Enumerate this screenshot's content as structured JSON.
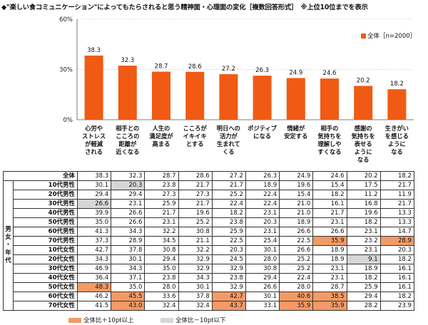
{
  "title": "◆\"楽しい食コミュニケーション\"によってもたらされると思う精神面・心理面の変化［複数回答形式］　※上位10位までを表示",
  "colors": {
    "bar": "#f05a14",
    "high": "#f39a66",
    "low": "#d6d6d6"
  },
  "chart_data": {
    "type": "bar",
    "series": [
      {
        "name": "全体［n=2000］",
        "values": [
          38.3,
          32.3,
          28.7,
          28.6,
          27.2,
          26.3,
          24.9,
          24.6,
          20.2,
          18.2
        ]
      }
    ],
    "categories": [
      "心労や\nストレス\nが軽減\nされる",
      "相手との\nこころの\n距離が\n近くなる",
      "人生の\n満足度が\n高まる",
      "こころが\nイキイキ\nとする",
      "明日への\n活力が\n生まれて\nくる",
      "ポジティブ\nになる",
      "情緒が\n安定する",
      "相手の\n気持ちを\n理解しや\nすくなる",
      "感謝の\n気持ちを\n表せる\nように\nなる",
      "生きがい\nを感じる\nように\nなる"
    ],
    "yticks": [
      "0%",
      "30%",
      "60%"
    ],
    "ylim": [
      0,
      60
    ],
    "legend": "全体［n=2000］",
    "table": {
      "total_label": "全体",
      "group_label": "男女・年代",
      "rows": [
        {
          "label": "10代男性",
          "values": [
            "30.1",
            "20.3",
            "23.8",
            "21.7",
            "21.7",
            "18.9",
            "19.6",
            "15.4",
            "17.5",
            "21.7"
          ],
          "hl": [
            0,
            2,
            0,
            0,
            0,
            0,
            0,
            0,
            0,
            0
          ]
        },
        {
          "label": "20代男性",
          "values": [
            "29.4",
            "29.4",
            "27.3",
            "27.3",
            "25.2",
            "22.4",
            "15.4",
            "18.2",
            "11.2",
            "11.9"
          ],
          "hl": [
            0,
            0,
            0,
            0,
            0,
            0,
            0,
            0,
            0,
            0
          ]
        },
        {
          "label": "30代男性",
          "values": [
            "26.6",
            "23.1",
            "25.9",
            "21.7",
            "22.4",
            "22.4",
            "21.0",
            "16.1",
            "16.8",
            "21.7"
          ],
          "hl": [
            2,
            0,
            0,
            0,
            0,
            0,
            0,
            0,
            0,
            0
          ]
        },
        {
          "label": "40代男性",
          "values": [
            "39.9",
            "26.6",
            "21.7",
            "19.6",
            "18.2",
            "23.1",
            "21.0",
            "21.7",
            "19.6",
            "13.3"
          ],
          "hl": [
            0,
            0,
            0,
            0,
            0,
            0,
            0,
            0,
            0,
            0
          ]
        },
        {
          "label": "50代男性",
          "values": [
            "35.0",
            "26.6",
            "23.1",
            "25.2",
            "23.8",
            "20.3",
            "18.9",
            "23.1",
            "18.2",
            "13.3"
          ],
          "hl": [
            0,
            0,
            0,
            0,
            0,
            0,
            0,
            0,
            0,
            0
          ]
        },
        {
          "label": "60代男性",
          "values": [
            "41.3",
            "34.3",
            "32.2",
            "30.8",
            "25.9",
            "23.1",
            "26.6",
            "26.6",
            "23.1",
            "14.7"
          ],
          "hl": [
            0,
            0,
            0,
            0,
            0,
            0,
            0,
            0,
            0,
            0
          ]
        },
        {
          "label": "70代男性",
          "values": [
            "37.3",
            "28.9",
            "34.5",
            "21.1",
            "22.5",
            "25.4",
            "22.5",
            "35.9",
            "23.2",
            "28.9"
          ],
          "hl": [
            0,
            0,
            0,
            0,
            0,
            0,
            0,
            1,
            0,
            1
          ]
        },
        {
          "label": "10代女性",
          "values": [
            "42.7",
            "37.8",
            "30.8",
            "32.2",
            "20.3",
            "30.1",
            "26.6",
            "18.9",
            "23.1",
            "20.3"
          ],
          "hl": [
            0,
            0,
            0,
            0,
            0,
            0,
            0,
            0,
            0,
            0
          ]
        },
        {
          "label": "20代女性",
          "values": [
            "34.3",
            "30.1",
            "29.4",
            "32.9",
            "24.5",
            "28.0",
            "25.2",
            "18.9",
            "9.1",
            "18.2"
          ],
          "hl": [
            0,
            0,
            0,
            0,
            0,
            0,
            0,
            0,
            2,
            0
          ]
        },
        {
          "label": "30代女性",
          "values": [
            "46.9",
            "34.3",
            "35.0",
            "32.9",
            "32.9",
            "30.8",
            "25.2",
            "23.1",
            "18.9",
            "16.1"
          ],
          "hl": [
            0,
            0,
            0,
            0,
            0,
            0,
            0,
            0,
            0,
            0
          ]
        },
        {
          "label": "40代女性",
          "values": [
            "36.4",
            "37.1",
            "23.8",
            "34.3",
            "23.8",
            "29.4",
            "22.4",
            "23.1",
            "18.2",
            "16.1"
          ],
          "hl": [
            0,
            0,
            0,
            0,
            0,
            0,
            0,
            0,
            0,
            0
          ]
        },
        {
          "label": "50代女性",
          "values": [
            "48.3",
            "35.0",
            "28.0",
            "30.1",
            "32.9",
            "26.6",
            "28.0",
            "28.7",
            "25.9",
            "16.1"
          ],
          "hl": [
            1,
            0,
            0,
            0,
            0,
            0,
            0,
            0,
            0,
            0
          ]
        },
        {
          "label": "60代女性",
          "values": [
            "46.2",
            "45.5",
            "33.6",
            "37.8",
            "42.7",
            "30.1",
            "40.6",
            "38.5",
            "29.4",
            "18.2"
          ],
          "hl": [
            0,
            1,
            0,
            0,
            1,
            0,
            1,
            1,
            0,
            0
          ]
        },
        {
          "label": "70代女性",
          "values": [
            "41.5",
            "43.0",
            "32.4",
            "32.4",
            "43.7",
            "33.1",
            "35.9",
            "35.9",
            "28.2",
            "23.9"
          ],
          "hl": [
            0,
            1,
            0,
            0,
            1,
            0,
            1,
            1,
            0,
            0
          ]
        }
      ]
    }
  },
  "footer": {
    "high": "全体比＋10pt以上",
    "low": "全体比－10pt以下"
  }
}
